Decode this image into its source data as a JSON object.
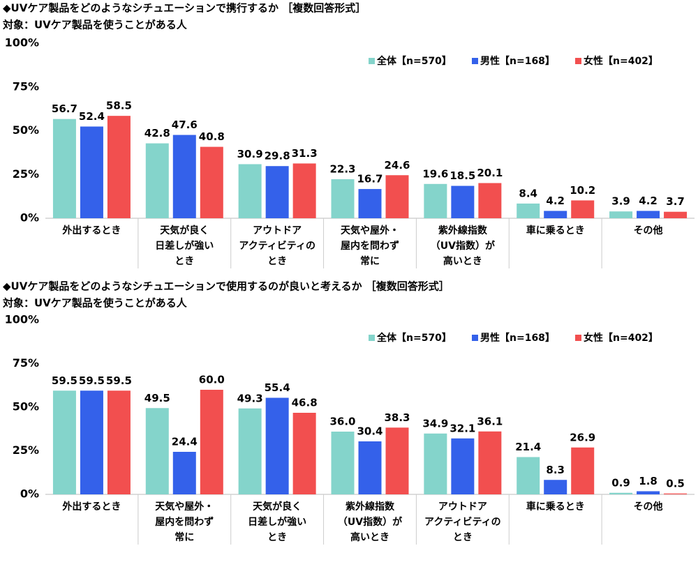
{
  "chart_data": [
    {
      "type": "bar",
      "title": "◆UVケア製品をどのようなシチュエーションで携行するか ［複数回答形式］",
      "subtitle": "対象：UVケア製品を使うことがある人",
      "categories": [
        [
          "外出するとき"
        ],
        [
          "天気が良く",
          "日差しが強い",
          "とき"
        ],
        [
          "アウトドア",
          "アクティビティの",
          "とき"
        ],
        [
          "天気や屋外・",
          "屋内を問わず",
          "常に"
        ],
        [
          "紫外線指数",
          "（UV指数）が",
          "高いとき"
        ],
        [
          "車に乗るとき"
        ],
        [
          "その他"
        ]
      ],
      "series": [
        {
          "name": "全体【n=570】",
          "color": "#84d4cb",
          "values": [
            56.7,
            42.8,
            30.9,
            22.3,
            19.6,
            8.4,
            3.9
          ],
          "value_labels": [
            "56.7",
            "42.8",
            "30.9",
            "22.3",
            "19.6",
            "8.4",
            "3.9"
          ]
        },
        {
          "name": "男性【n=168】",
          "color": "#3461ea",
          "values": [
            52.4,
            47.6,
            29.8,
            16.7,
            18.5,
            4.2,
            4.2
          ],
          "value_labels": [
            "52.4",
            "47.6",
            "29.8",
            "16.7",
            "18.5",
            "4.2",
            "4.2"
          ]
        },
        {
          "name": "女性【n=402】",
          "color": "#f24f4f",
          "values": [
            58.5,
            40.8,
            31.3,
            24.6,
            20.1,
            10.2,
            3.7
          ],
          "value_labels": [
            "58.5",
            "40.8",
            "31.3",
            "24.6",
            "20.1",
            "10.2",
            "3.7"
          ]
        }
      ],
      "ylim": [
        0,
        100
      ],
      "yticks": [
        {
          "value": 0,
          "label": "0%"
        },
        {
          "value": 25,
          "label": "25%"
        },
        {
          "value": 50,
          "label": "50%"
        },
        {
          "value": 75,
          "label": "75%"
        },
        {
          "value": 100,
          "label": "100%"
        }
      ],
      "legend": "upper right"
    },
    {
      "type": "bar",
      "title": "◆UVケア製品をどのようなシチュエーションで使用するのが良いと考えるか ［複数回答形式］",
      "subtitle": "対象：UVケア製品を使うことがある人",
      "categories": [
        [
          "外出するとき"
        ],
        [
          "天気や屋外・",
          "屋内を問わず",
          "常に"
        ],
        [
          "天気が良く",
          "日差しが強い",
          "とき"
        ],
        [
          "紫外線指数",
          "（UV指数）が",
          "高いとき"
        ],
        [
          "アウトドア",
          "アクティビティの",
          "とき"
        ],
        [
          "車に乗るとき"
        ],
        [
          "その他"
        ]
      ],
      "series": [
        {
          "name": "全体【n=570】",
          "color": "#84d4cb",
          "values": [
            59.5,
            49.5,
            49.3,
            36.0,
            34.9,
            21.4,
            0.9
          ],
          "value_labels": [
            "59.5",
            "49.5",
            "49.3",
            "36.0",
            "34.9",
            "21.4",
            "0.9"
          ]
        },
        {
          "name": "男性【n=168】",
          "color": "#3461ea",
          "values": [
            59.5,
            24.4,
            55.4,
            30.4,
            32.1,
            8.3,
            1.8
          ],
          "value_labels": [
            "59.5",
            "24.4",
            "55.4",
            "30.4",
            "32.1",
            "8.3",
            "1.8"
          ]
        },
        {
          "name": "女性【n=402】",
          "color": "#f24f4f",
          "values": [
            59.5,
            60.0,
            46.8,
            38.3,
            36.1,
            26.9,
            0.5
          ],
          "value_labels": [
            "59.5",
            "60.0",
            "46.8",
            "38.3",
            "36.1",
            "26.9",
            "0.5"
          ]
        }
      ],
      "ylim": [
        0,
        100
      ],
      "yticks": [
        {
          "value": 0,
          "label": "0%"
        },
        {
          "value": 25,
          "label": "25%"
        },
        {
          "value": 50,
          "label": "50%"
        },
        {
          "value": 75,
          "label": "75%"
        },
        {
          "value": 100,
          "label": "100%"
        }
      ],
      "legend": "upper right"
    }
  ]
}
